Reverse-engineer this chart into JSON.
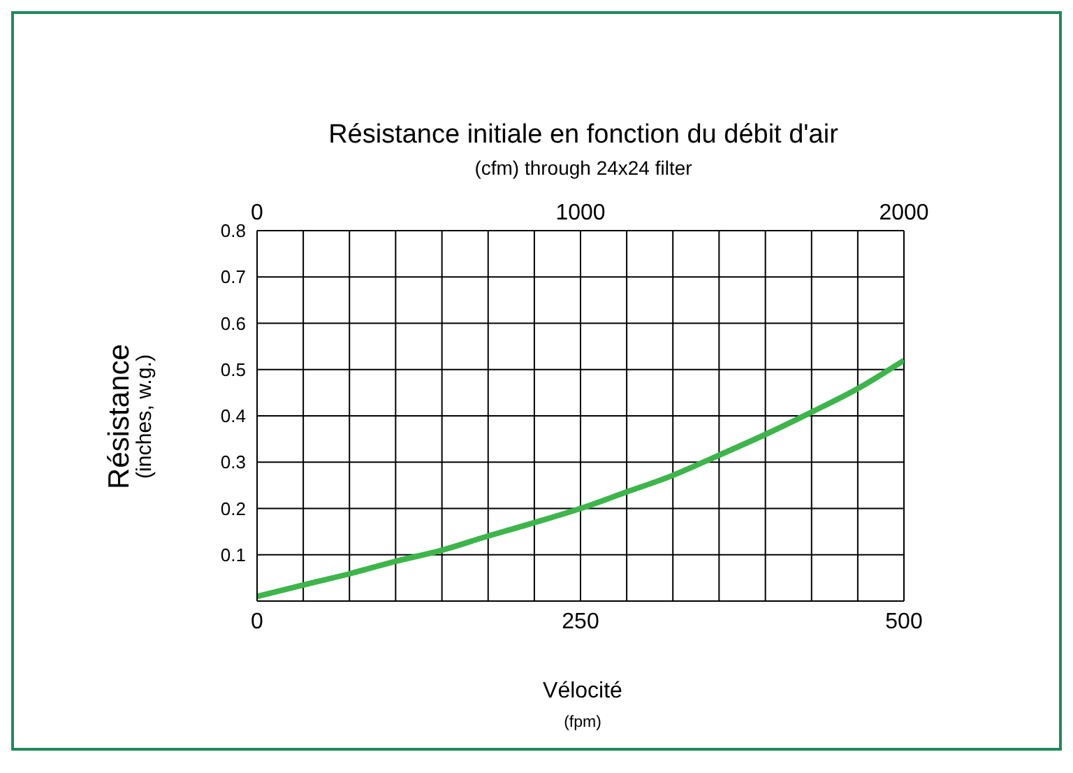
{
  "chart_data": {
    "type": "line",
    "title": "Résistance initiale en fonction du débit d'air",
    "subtitle": "(cfm) through 24x24 filter",
    "xlabel": "Vélocité\n(fpm)",
    "ylabel": "Résistance\n(inches, w.g.)",
    "x": [
      0,
      36,
      73,
      106,
      143,
      178,
      215,
      250,
      285,
      320,
      357,
      393,
      430,
      465,
      500
    ],
    "series": [
      {
        "color": "#3db54a",
        "values": [
          0.01,
          0.035,
          0.06,
          0.085,
          0.11,
          0.14,
          0.17,
          0.2,
          0.235,
          0.27,
          0.315,
          0.36,
          0.41,
          0.46,
          0.52
        ]
      }
    ],
    "xlim": [
      0,
      500
    ],
    "xticks": [
      0,
      {
        "value": 35.7,
        "label": null
      },
      {
        "value": 71.4,
        "label": null
      },
      {
        "value": 107.1,
        "label": null
      },
      {
        "value": 142.9,
        "label": null
      },
      {
        "value": 178.6,
        "label": null
      },
      {
        "value": 214.3,
        "label": null
      },
      250,
      {
        "value": 285.7,
        "label": null
      },
      {
        "value": 321.4,
        "label": null
      },
      {
        "value": 357.1,
        "label": null
      },
      {
        "value": 392.9,
        "label": null
      },
      {
        "value": 428.6,
        "label": null
      },
      {
        "value": 464.3,
        "label": null
      },
      500
    ],
    "x2lim": [
      0,
      2000
    ],
    "x2ticks": [
      0,
      1000,
      2000
    ],
    "ylim": [
      0,
      0.8
    ],
    "yticks": [
      {
        "value": 0,
        "label": null
      },
      0.1,
      0.2,
      0.3,
      0.4,
      0.5,
      0.6,
      0.7,
      0.8
    ],
    "grid": true,
    "marker": "none",
    "line_style": "solid"
  }
}
